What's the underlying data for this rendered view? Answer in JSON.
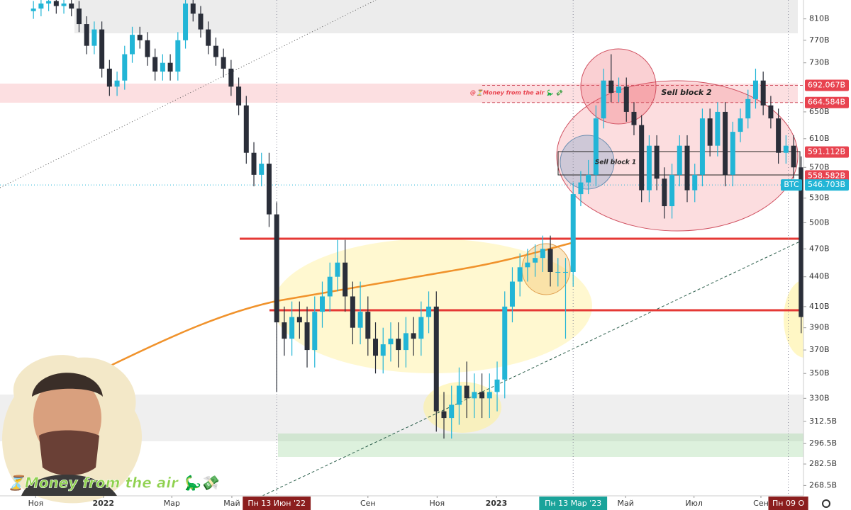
{
  "chart_data": {
    "type": "candlestick",
    "categories": [
      null,
      null,
      null,
      null,
      null,
      null,
      null,
      null,
      null,
      null,
      null,
      null,
      null,
      null,
      null,
      null,
      null,
      null,
      null,
      null,
      null,
      null,
      null,
      null,
      null,
      null,
      null,
      null,
      null,
      null,
      null,
      null,
      null,
      null,
      null,
      null,
      null,
      null,
      null,
      null,
      null,
      null,
      null,
      null,
      null,
      null,
      null,
      null,
      null,
      null,
      null,
      null,
      null,
      null,
      null,
      null,
      null,
      null,
      null,
      null,
      null,
      null,
      null,
      null,
      null,
      null,
      null,
      null,
      null,
      null,
      null,
      null,
      null,
      null,
      null,
      null,
      null,
      null,
      null,
      null,
      null,
      null,
      null,
      null,
      null,
      null,
      null,
      null,
      null,
      null,
      null,
      null,
      null,
      null,
      null,
      null,
      null,
      null,
      null,
      null,
      null,
      null
    ],
    "open": [
      825,
      830,
      840,
      845,
      835,
      840,
      830,
      800,
      760,
      790,
      720,
      690,
      700,
      745,
      780,
      770,
      740,
      715,
      730,
      715,
      770,
      840,
      820,
      790,
      760,
      740,
      720,
      690,
      660,
      590,
      560,
      575,
      510,
      395,
      380,
      400,
      395,
      370,
      405,
      420,
      440,
      455,
      420,
      390,
      405,
      380,
      365,
      375,
      380,
      370,
      385,
      380,
      400,
      410,
      320,
      315,
      325,
      340,
      330,
      335,
      330,
      335,
      345,
      410,
      435,
      450,
      455,
      460,
      470,
      445,
      445,
      445,
      535,
      550,
      560,
      640,
      700,
      680,
      690,
      650,
      630,
      540,
      600,
      555,
      520,
      560,
      600,
      540,
      560,
      640,
      600,
      650,
      560,
      620,
      640,
      670,
      700,
      660,
      640,
      590,
      600,
      570
    ],
    "high": [
      845,
      855,
      860,
      860,
      855,
      855,
      845,
      815,
      805,
      805,
      735,
      715,
      760,
      795,
      795,
      785,
      755,
      745,
      745,
      785,
      855,
      855,
      835,
      805,
      775,
      755,
      735,
      705,
      675,
      605,
      590,
      590,
      525,
      410,
      415,
      415,
      410,
      420,
      435,
      455,
      480,
      480,
      435,
      435,
      420,
      395,
      390,
      395,
      395,
      400,
      400,
      415,
      425,
      425,
      335,
      340,
      355,
      360,
      350,
      350,
      350,
      360,
      425,
      450,
      465,
      470,
      475,
      485,
      485,
      460,
      460,
      550,
      565,
      580,
      660,
      720,
      745,
      705,
      705,
      665,
      645,
      615,
      615,
      570,
      575,
      615,
      615,
      575,
      655,
      655,
      665,
      665,
      635,
      655,
      685,
      720,
      715,
      675,
      655,
      615,
      615,
      585
    ],
    "low": [
      810,
      815,
      825,
      820,
      820,
      815,
      785,
      745,
      745,
      705,
      675,
      675,
      685,
      730,
      755,
      725,
      700,
      700,
      700,
      700,
      755,
      805,
      775,
      745,
      725,
      705,
      675,
      645,
      575,
      545,
      545,
      495,
      335,
      365,
      365,
      380,
      355,
      355,
      390,
      405,
      425,
      405,
      375,
      375,
      365,
      350,
      350,
      360,
      355,
      355,
      365,
      365,
      385,
      305,
      300,
      300,
      310,
      315,
      315,
      315,
      315,
      320,
      330,
      395,
      420,
      435,
      440,
      445,
      430,
      430,
      380,
      430,
      520,
      535,
      545,
      625,
      665,
      665,
      635,
      615,
      525,
      525,
      540,
      505,
      505,
      545,
      525,
      525,
      545,
      585,
      585,
      545,
      545,
      605,
      625,
      655,
      645,
      625,
      575,
      575,
      555,
      385
    ],
    "close": [
      830,
      840,
      845,
      835,
      840,
      830,
      800,
      760,
      790,
      720,
      690,
      700,
      745,
      780,
      770,
      740,
      715,
      730,
      715,
      770,
      840,
      820,
      790,
      760,
      740,
      720,
      690,
      660,
      590,
      560,
      575,
      510,
      395,
      380,
      400,
      395,
      370,
      405,
      420,
      440,
      455,
      420,
      390,
      405,
      380,
      365,
      375,
      380,
      370,
      385,
      380,
      400,
      410,
      320,
      315,
      325,
      340,
      330,
      335,
      330,
      335,
      345,
      410,
      435,
      450,
      455,
      460,
      470,
      445,
      445,
      445,
      535,
      550,
      560,
      640,
      700,
      680,
      690,
      650,
      630,
      540,
      600,
      555,
      520,
      560,
      600,
      540,
      560,
      640,
      600,
      650,
      560,
      620,
      640,
      670,
      700,
      660,
      640,
      590,
      600,
      570,
      400
    ],
    "up_color": "#22b5d6",
    "down_color": "#2a2e39",
    "log_scale": true,
    "ylim": [
      262,
      847
    ],
    "yticks": [
      {
        "value": 810,
        "label": "810B"
      },
      {
        "value": 770,
        "label": "770B"
      },
      {
        "value": 730,
        "label": "730B"
      },
      {
        "value": 650,
        "label": "650B"
      },
      {
        "value": 610,
        "label": "610B"
      },
      {
        "value": 570,
        "label": "570B"
      },
      {
        "value": 530,
        "label": "530B"
      },
      {
        "value": 500,
        "label": "500B"
      },
      {
        "value": 470,
        "label": "470B"
      },
      {
        "value": 440,
        "label": "440B"
      },
      {
        "value": 410,
        "label": "410B"
      },
      {
        "value": 390,
        "label": "390B"
      },
      {
        "value": 370,
        "label": "370B"
      },
      {
        "value": 350,
        "label": "350B"
      },
      {
        "value": 330,
        "label": "330B"
      },
      {
        "value": 312.5,
        "label": "312.5B"
      },
      {
        "value": 296.5,
        "label": "296.5B"
      },
      {
        "value": 282.5,
        "label": "282.5B"
      },
      {
        "value": 268.5,
        "label": "268.5B"
      }
    ],
    "xlim": [
      -4.4,
      101.3
    ],
    "xticks": [
      {
        "value": 0.3,
        "label": "Ноя"
      },
      {
        "value": 9.2,
        "label": "2022"
      },
      {
        "value": 18.2,
        "label": "Мар"
      },
      {
        "value": 26.1,
        "label": "Май"
      },
      {
        "value": 32,
        "label": "Пн 13 Июн '22",
        "color": "#8b1e1e"
      },
      {
        "value": 44,
        "label": "Сен"
      },
      {
        "value": 53.1,
        "label": "Ноя"
      },
      {
        "value": 60.9,
        "label": "2023"
      },
      {
        "value": 71,
        "label": "Пн 13 Мар '23",
        "color": "#1aa39a"
      },
      {
        "value": 77.9,
        "label": "Май"
      },
      {
        "value": 86.9,
        "label": "Июл"
      },
      {
        "value": 95.7,
        "label": "Сен"
      },
      {
        "value": 99.3,
        "label": "Пн 09 О",
        "color": "#8b1e1e"
      }
    ],
    "symbol": "BTC",
    "price_labels": [
      {
        "value": 692.067,
        "label": "692.067B",
        "color": "#e8434f"
      },
      {
        "value": 664.584,
        "label": "664.584B",
        "color": "#e8434f"
      },
      {
        "value": 591.112,
        "label": "591.112B",
        "color": "#e8434f"
      },
      {
        "value": 558.582,
        "label": "558.582B",
        "color": "#e8434f"
      },
      {
        "value": 546.703,
        "label": "546.703B",
        "color": "#22b5d6"
      }
    ],
    "annotations": [
      "Sell block 2",
      "Sell block 1",
      "@⏳Money from the air 🦕 💸"
    ]
  },
  "watermark": "⏳Money from the air 🦕💸"
}
